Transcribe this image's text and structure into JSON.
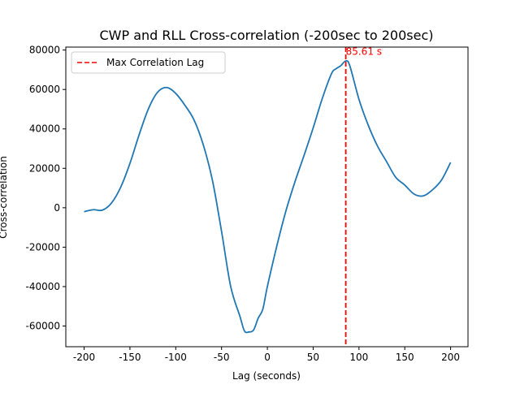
{
  "chart_data": {
    "type": "line",
    "title": "CWP and RLL Cross-correlation (-200sec to 200sec)",
    "xlabel": "Lag (seconds)",
    "ylabel": "Cross-correlation",
    "xlim": [
      -220,
      219
    ],
    "ylim": [
      -70500,
      81500
    ],
    "xticks": [
      -200,
      -150,
      -100,
      -50,
      0,
      50,
      100,
      150,
      200
    ],
    "yticks": [
      -60000,
      -40000,
      -20000,
      0,
      20000,
      40000,
      60000,
      80000
    ],
    "grid": false,
    "legend": {
      "placement": "top-left",
      "entries": [
        "Max Correlation Lag"
      ]
    },
    "series": [
      {
        "name": "cross-correlation",
        "color": "#1f77b4",
        "x": [
          -200,
          -190,
          -180,
          -170,
          -160,
          -150,
          -140,
          -130,
          -120,
          -110,
          -100,
          -90,
          -80,
          -70,
          -60,
          -50,
          -40,
          -30,
          -25,
          -20,
          -15,
          -10,
          -5,
          0,
          10,
          20,
          30,
          40,
          50,
          60,
          70,
          75,
          80,
          85.61,
          90,
          100,
          110,
          120,
          130,
          140,
          150,
          160,
          170,
          180,
          190,
          200
        ],
        "y": [
          -2000,
          -1000,
          -1200,
          2500,
          10500,
          22500,
          37000,
          50000,
          58500,
          61000,
          58000,
          52000,
          44500,
          32000,
          14000,
          -12000,
          -40000,
          -55000,
          -62500,
          -63000,
          -62000,
          -56000,
          -51500,
          -40000,
          -20000,
          -2000,
          13000,
          26500,
          40500,
          55500,
          68000,
          70500,
          72000,
          74500,
          72000,
          55000,
          42000,
          31500,
          23500,
          15500,
          11500,
          7000,
          6000,
          9000,
          14000,
          23000
        ]
      },
      {
        "name": "Max Correlation Lag",
        "color": "#ff0000",
        "vline": 85.61
      }
    ],
    "annotations": [
      {
        "text": "85.61 s",
        "x": 85.61,
        "y": 78000,
        "color": "#ff0000"
      }
    ]
  }
}
